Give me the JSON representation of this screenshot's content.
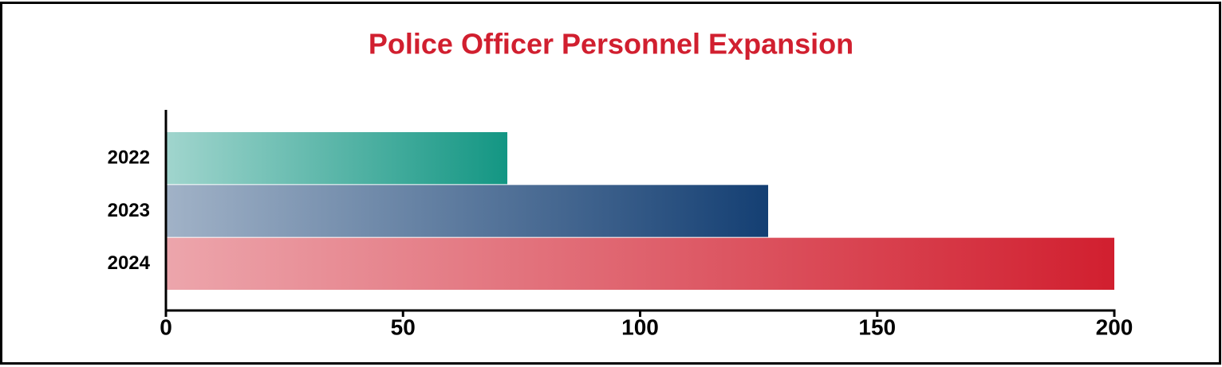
{
  "chart_data": {
    "type": "bar",
    "orientation": "horizontal",
    "title": "Police Officer Personnel Expansion",
    "categories": [
      "2022",
      "2023",
      "2024"
    ],
    "values": [
      72,
      127,
      200
    ],
    "colors": [
      "#139683",
      "#143f73",
      "#d11f2f"
    ],
    "xlim": [
      0,
      200
    ],
    "xticks": [
      0,
      50,
      100,
      150,
      200
    ]
  }
}
